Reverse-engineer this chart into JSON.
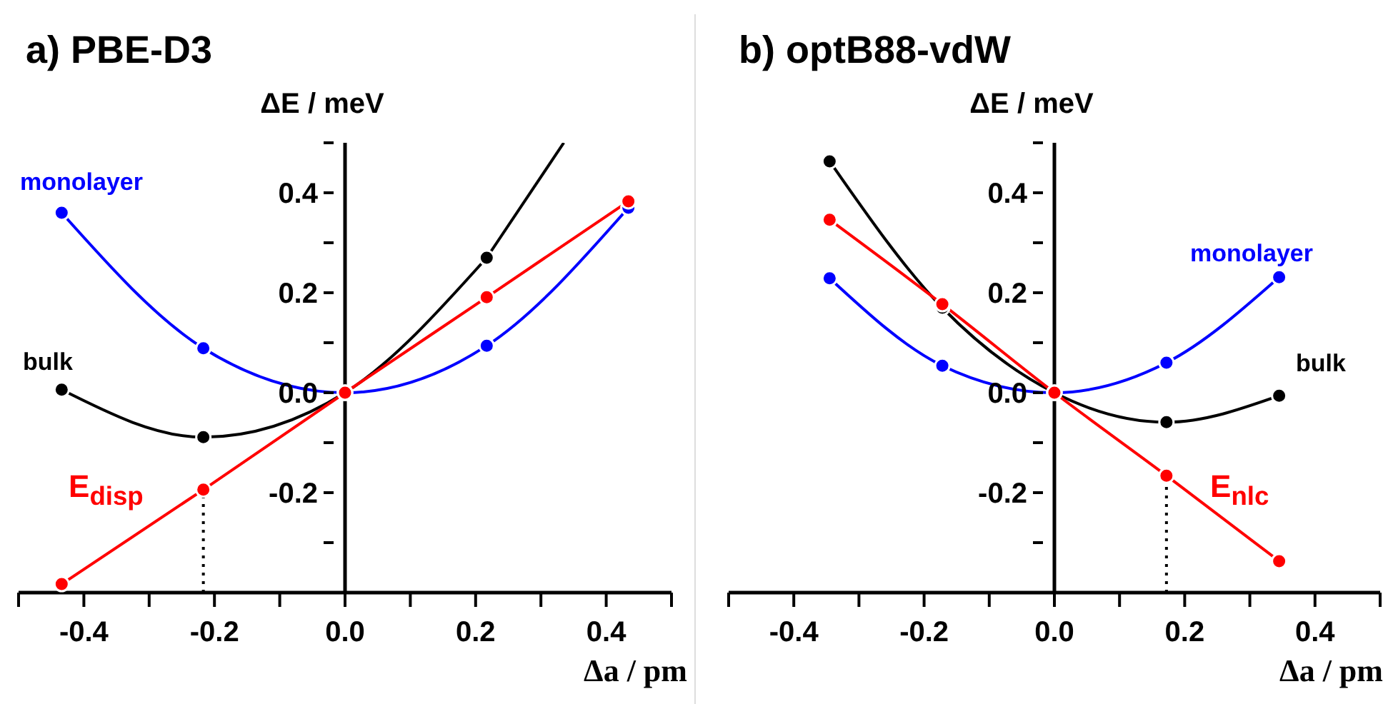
{
  "chart_data": [
    {
      "type": "line",
      "title": "a) PBE-D3",
      "xlabel": "Δa / pm",
      "ylabel": "ΔE / meV",
      "xlim": [
        -0.5,
        0.5
      ],
      "ylim": [
        -0.4,
        0.5
      ],
      "xticks": [
        {
          "value": -0.5,
          "label": null
        },
        -0.4,
        {
          "value": -0.3,
          "label": null
        },
        {
          "value": -0.2,
          "label": "-0.2"
        },
        {
          "value": -0.1,
          "label": null
        },
        {
          "value": 0,
          "label": "0.0"
        },
        {
          "value": 0.1,
          "label": null
        },
        0.2,
        {
          "value": 0.3,
          "label": null
        },
        0.4,
        {
          "value": 0.5,
          "label": null
        }
      ],
      "yticks": [
        {
          "value": -0.3,
          "label": null
        },
        -0.2,
        {
          "value": -0.1,
          "label": null
        },
        {
          "value": 0,
          "label": "0.0"
        },
        {
          "value": 0.1,
          "label": null
        },
        0.2,
        {
          "value": 0.3,
          "label": null
        },
        0.4,
        {
          "value": 0.5,
          "label": null
        }
      ],
      "marker": "circle",
      "series": [
        {
          "name": "monolayer",
          "color": "#0000ff",
          "x": [
            -0.434,
            -0.217,
            0,
            0.217,
            0.434
          ],
          "values": [
            0.36,
            0.089,
            0,
            0.094,
            0.37
          ]
        },
        {
          "name": "bulk",
          "color": "#000000",
          "x": [
            -0.434,
            -0.217,
            0,
            0.217
          ],
          "values": [
            0.006,
            -0.089,
            0,
            0.27
          ]
        },
        {
          "color": "#000000",
          "marker": "none",
          "x": [
            0.217,
            0.335
          ],
          "values": [
            0.27,
            0.5
          ]
        },
        {
          "name": "E$_{disp}$",
          "color": "#ff0000",
          "x": [
            -0.434,
            -0.217,
            0,
            0.217,
            0.434
          ],
          "values": [
            -0.383,
            -0.194,
            0,
            0.191,
            0.383
          ]
        }
      ],
      "ref_lines": [
        {
          "axis": "x",
          "value": -0.217,
          "line_style": "dotted",
          "color": "#000000"
        }
      ]
    },
    {
      "type": "line",
      "title": "b) optB88-vdW",
      "xlabel": "Δa / pm",
      "ylabel": "ΔE / meV",
      "xlim": [
        -0.5,
        0.5
      ],
      "ylim": [
        -0.4,
        0.5
      ],
      "xticks": [
        {
          "value": -0.5,
          "label": null
        },
        -0.4,
        {
          "value": -0.3,
          "label": null
        },
        {
          "value": -0.2,
          "label": "-0.2"
        },
        {
          "value": -0.1,
          "label": null
        },
        {
          "value": 0,
          "label": "0.0"
        },
        {
          "value": 0.1,
          "label": null
        },
        0.2,
        {
          "value": 0.3,
          "label": null
        },
        0.4,
        {
          "value": 0.5,
          "label": null
        }
      ],
      "yticks": [
        {
          "value": -0.3,
          "label": null
        },
        -0.2,
        {
          "value": -0.1,
          "label": null
        },
        {
          "value": 0,
          "label": "0.0"
        },
        {
          "value": 0.1,
          "label": null
        },
        0.2,
        {
          "value": 0.3,
          "label": null
        },
        0.4,
        {
          "value": 0.5,
          "label": null
        }
      ],
      "marker": "circle",
      "series": [
        {
          "name": "monolayer",
          "color": "#0000ff",
          "x": [
            -0.345,
            -0.172,
            0,
            0.172,
            0.345
          ],
          "values": [
            0.229,
            0.054,
            0,
            0.06,
            0.231
          ]
        },
        {
          "name": "bulk",
          "color": "#000000",
          "x": [
            -0.345,
            -0.172,
            0,
            0.172,
            0.345
          ],
          "values": [
            0.463,
            0.17,
            0,
            -0.059,
            -0.006
          ]
        },
        {
          "name": "E$_{nlc}$",
          "color": "#ff0000",
          "x": [
            -0.345,
            -0.172,
            0,
            0.172,
            0.345
          ],
          "values": [
            0.346,
            0.177,
            0,
            -0.166,
            -0.337
          ]
        }
      ],
      "ref_lines": [
        {
          "axis": "x",
          "value": 0.172,
          "line_style": "dotted",
          "color": "#000000"
        }
      ]
    }
  ]
}
